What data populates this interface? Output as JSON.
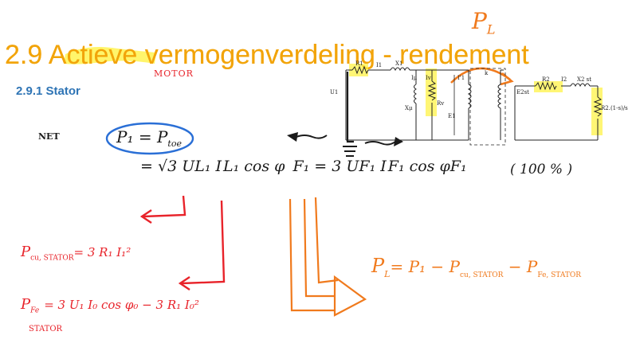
{
  "slide": {
    "title": "2.9 Actieve vermogenverdeling - rendement",
    "subtitle": "2.9.1 Stator"
  },
  "annotations": {
    "motor": "MOTOR",
    "pl_top": "P",
    "pl_top_sub": "L",
    "net": "NET",
    "p1_eq_ptoe": "P₁ = P",
    "p1_eq_ptoe_sub": "toe",
    "main_formula": "= √3 U",
    "main_formula_rest": "L₁ I",
    "main_formula_rest2": "L₁ cos φ",
    "main_formula_rest3": "F₁ = 3 U",
    "main_formula_rest4": "F₁ I",
    "main_formula_rest5": "F₁ cos φ",
    "main_formula_rest6": "F₁",
    "percent": "( 100 % )",
    "pcu_stator": "P",
    "pcu_stator_sub": "cu, STATOR",
    "pcu_stator_rhs": "= 3 R₁ I₁²",
    "pfe_stator": "P",
    "pfe_stator_sub": "Fe",
    "pfe_stator_sub2": "STATOR",
    "pfe_stator_rhs": "= 3 U₁ I₀ cos φ₀ − 3 R₁ I₀²",
    "pl_eq": "P",
    "pl_eq_sub": "L",
    "pl_eq_rhs": "= P₁ − P",
    "pl_eq_cu": "cu, STATOR",
    "pl_eq_minus": " − P",
    "pl_eq_fe": "Fe, STATOR"
  },
  "circuit": {
    "labels": {
      "r1": "R1",
      "i1": "I1",
      "x1": "X1",
      "u1": "U1",
      "iu": "Iμ",
      "iv": "Iv",
      "xu": "Xμ",
      "rv": "Rv",
      "e1": "E1",
      "i1p": "I'1",
      "k": "k",
      "e2st": "E2st",
      "r2": "R2",
      "i2": "I2",
      "x2st": "X2 st",
      "r2load": "R2.(1-s)/s"
    }
  },
  "colors": {
    "title": "#f2a40a",
    "highlight": "#fff23a",
    "subtitle": "#2e74b5",
    "red_ink": "#e8232a",
    "orange_ink": "#f07a1d",
    "black_ink": "#1a1a1a"
  }
}
